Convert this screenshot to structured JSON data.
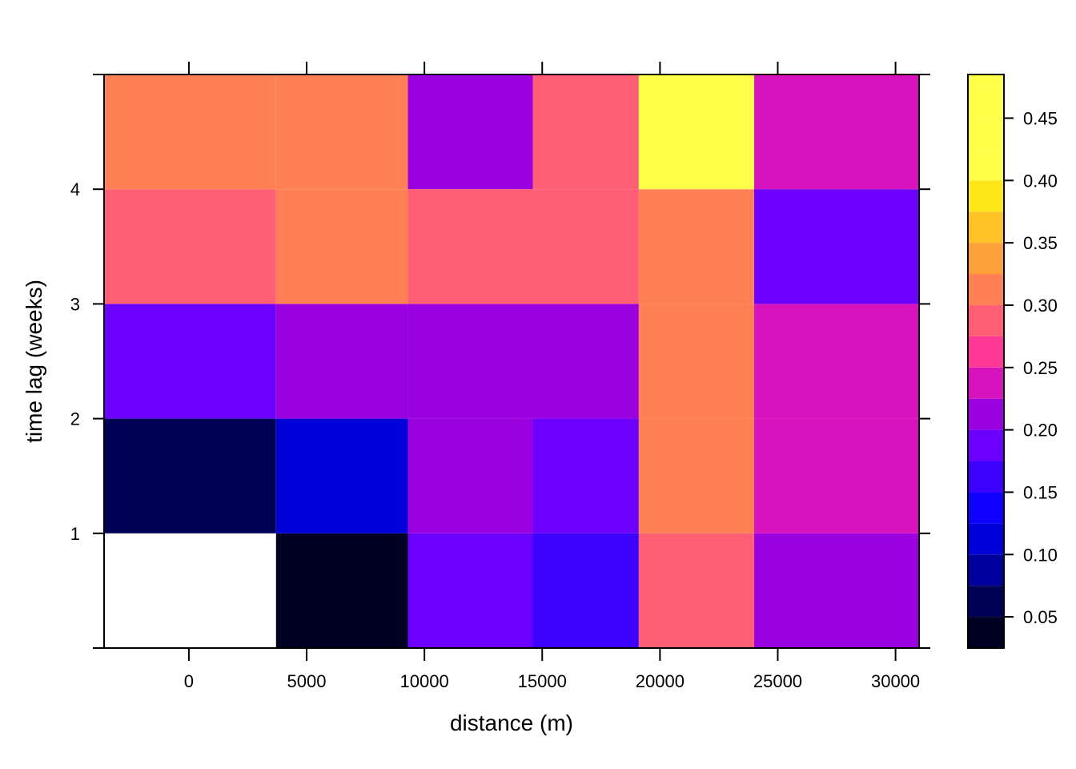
{
  "chart_data": {
    "type": "heatmap",
    "title": "",
    "xlabel": "distance (m)",
    "ylabel": "time lag (weeks)",
    "x_ticks": [
      "0",
      "5000",
      "10000",
      "15000",
      "20000",
      "25000",
      "30000"
    ],
    "y_ticks": [
      "1",
      "2",
      "3",
      "4"
    ],
    "xlim": [
      -3600,
      31000
    ],
    "ylim": [
      0,
      5
    ],
    "x_bin_edges": [
      -3600,
      3700,
      9300,
      14600,
      19100,
      24000,
      31000
    ],
    "y_bin_edges": [
      0,
      1,
      2,
      3,
      4,
      5
    ],
    "rows": [
      {
        "time_lag_range": [
          0,
          1
        ],
        "values": [
          null,
          0.04,
          0.19,
          0.16,
          0.28,
          0.21
        ]
      },
      {
        "time_lag_range": [
          1,
          2
        ],
        "values": [
          0.07,
          0.1,
          0.21,
          0.19,
          0.3,
          0.24
        ]
      },
      {
        "time_lag_range": [
          2,
          3
        ],
        "values": [
          0.18,
          0.21,
          0.21,
          0.21,
          0.3,
          0.24
        ]
      },
      {
        "time_lag_range": [
          3,
          4
        ],
        "values": [
          0.28,
          0.32,
          0.28,
          0.28,
          0.32,
          0.18
        ]
      },
      {
        "time_lag_range": [
          4,
          5
        ],
        "values": [
          0.3,
          0.32,
          0.21,
          0.28,
          0.47,
          0.24
        ]
      }
    ],
    "colorbar": {
      "breaks": [
        0.025,
        0.05,
        0.075,
        0.1,
        0.125,
        0.15,
        0.175,
        0.2,
        0.225,
        0.25,
        0.275,
        0.3,
        0.325,
        0.35,
        0.375,
        0.4,
        0.425,
        0.45,
        0.475,
        0.5
      ],
      "colors": [
        "#000022",
        "#000057",
        "#00009c",
        "#0000d8",
        "#0f00ff",
        "#3c00ff",
        "#6c00ff",
        "#9a00e0",
        "#d813bd",
        "#ff3898",
        "#ff5e74",
        "#ff8054",
        "#ffa13a",
        "#ffc327",
        "#ffe619",
        "#ffff4a",
        "#ffff4a",
        "#ffff4a",
        "#ffff4a"
      ],
      "tick_labels": [
        "0.05",
        "0.10",
        "0.15",
        "0.20",
        "0.25",
        "0.30",
        "0.35",
        "0.40",
        "0.45"
      ],
      "range": [
        0.025,
        0.485
      ]
    },
    "missing_color": "#ffffff"
  }
}
